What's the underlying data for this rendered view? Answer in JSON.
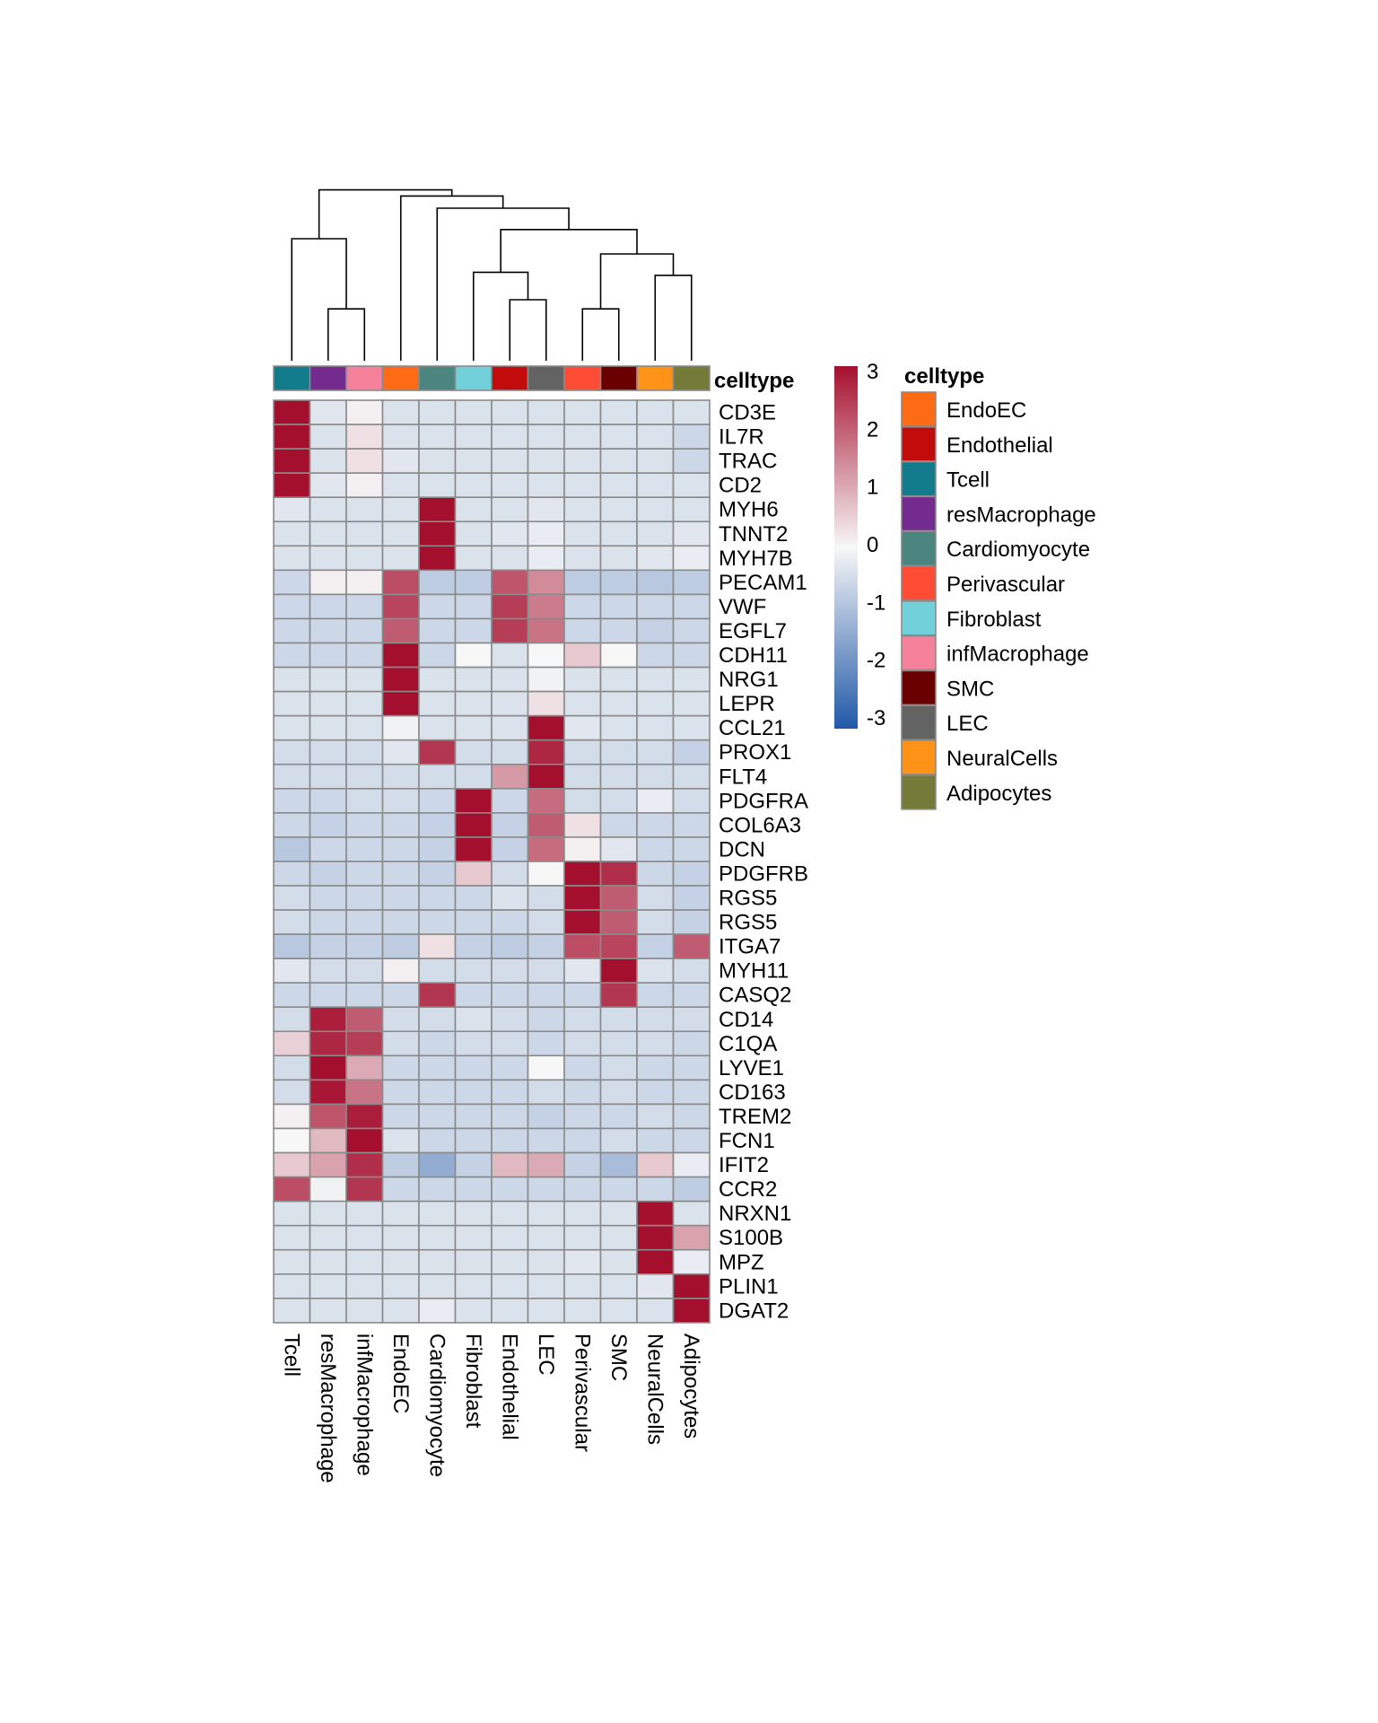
{
  "chart_data": {
    "type": "heatmap",
    "annotation_title": "celltype",
    "columns": [
      "Tcell",
      "resMacrophage",
      "infMacrophage",
      "EndoEC",
      "Cardiomyocyte",
      "Fibroblast",
      "Endothelial",
      "LEC",
      "Perivascular",
      "SMC",
      "NeuralCells",
      "Adipocytes"
    ],
    "rows": [
      "CD3E",
      "IL7R",
      "TRAC",
      "CD2",
      "MYH6",
      "TNNT2",
      "MYH7B",
      "PECAM1",
      "VWF",
      "EGFL7",
      "CDH11",
      "NRG1",
      "LEPR",
      "CCL21",
      "PROX1",
      "FLT4",
      "PDGFRA",
      "COL6A3",
      "DCN",
      "PDGFRB",
      "RGS5",
      "RGS5",
      "ITGA7",
      "MYH11",
      "CASQ2",
      "CD14",
      "C1QA",
      "LYVE1",
      "CD163",
      "TREM2",
      "FCN1",
      "IFIT2",
      "CCR2",
      "NRXN1",
      "S100B",
      "MPZ",
      "PLIN1",
      "DGAT2"
    ],
    "values": [
      [
        3.2,
        -0.3,
        0.1,
        -0.4,
        -0.4,
        -0.4,
        -0.4,
        -0.4,
        -0.4,
        -0.4,
        -0.4,
        -0.4
      ],
      [
        3.2,
        -0.4,
        0.3,
        -0.4,
        -0.4,
        -0.4,
        -0.4,
        -0.4,
        -0.4,
        -0.4,
        -0.4,
        -0.6
      ],
      [
        3.2,
        -0.4,
        0.3,
        -0.3,
        -0.4,
        -0.4,
        -0.4,
        -0.4,
        -0.4,
        -0.4,
        -0.4,
        -0.6
      ],
      [
        3.2,
        -0.3,
        0.1,
        -0.4,
        -0.4,
        -0.4,
        -0.4,
        -0.4,
        -0.4,
        -0.4,
        -0.4,
        -0.4
      ],
      [
        -0.3,
        -0.4,
        -0.4,
        -0.4,
        3.2,
        -0.4,
        -0.4,
        -0.3,
        -0.4,
        -0.4,
        -0.4,
        -0.4
      ],
      [
        -0.4,
        -0.4,
        -0.4,
        -0.4,
        3.2,
        -0.4,
        -0.3,
        -0.2,
        -0.4,
        -0.4,
        -0.4,
        -0.3
      ],
      [
        -0.4,
        -0.4,
        -0.4,
        -0.4,
        3.2,
        -0.4,
        -0.4,
        -0.2,
        -0.4,
        -0.4,
        -0.3,
        -0.2
      ],
      [
        -0.6,
        0.1,
        0.1,
        2.2,
        -0.8,
        -0.8,
        2.1,
        1.4,
        -0.8,
        -0.8,
        -0.9,
        -0.8
      ],
      [
        -0.6,
        -0.6,
        -0.6,
        2.3,
        -0.6,
        -0.6,
        2.4,
        1.6,
        -0.6,
        -0.6,
        -0.6,
        -0.6
      ],
      [
        -0.6,
        -0.6,
        -0.6,
        2.0,
        -0.6,
        -0.6,
        2.4,
        1.7,
        -0.6,
        -0.6,
        -0.7,
        -0.6
      ],
      [
        -0.6,
        -0.6,
        -0.6,
        3.2,
        -0.6,
        0.0,
        -0.4,
        0.0,
        0.6,
        0.0,
        -0.6,
        -0.6
      ],
      [
        -0.4,
        -0.4,
        -0.4,
        3.2,
        -0.4,
        -0.4,
        -0.4,
        -0.1,
        -0.4,
        -0.4,
        -0.4,
        -0.4
      ],
      [
        -0.4,
        -0.4,
        -0.4,
        3.2,
        -0.4,
        -0.4,
        -0.4,
        0.3,
        -0.4,
        -0.4,
        -0.4,
        -0.4
      ],
      [
        -0.4,
        -0.4,
        -0.4,
        -0.1,
        -0.4,
        -0.4,
        -0.4,
        3.2,
        -0.3,
        -0.4,
        -0.4,
        -0.4
      ],
      [
        -0.5,
        -0.5,
        -0.5,
        -0.3,
        2.5,
        -0.5,
        -0.5,
        2.7,
        -0.5,
        -0.5,
        -0.5,
        -0.7
      ],
      [
        -0.5,
        -0.5,
        -0.5,
        -0.5,
        -0.5,
        -0.5,
        1.2,
        3.0,
        -0.5,
        -0.5,
        -0.5,
        -0.5
      ],
      [
        -0.6,
        -0.6,
        -0.5,
        -0.5,
        -0.6,
        3.0,
        -0.6,
        1.8,
        -0.5,
        -0.5,
        -0.2,
        -0.5
      ],
      [
        -0.6,
        -0.7,
        -0.6,
        -0.6,
        -0.7,
        3.0,
        -0.7,
        2.0,
        0.3,
        -0.6,
        -0.6,
        -0.6
      ],
      [
        -0.9,
        -0.6,
        -0.6,
        -0.6,
        -0.7,
        3.0,
        -0.7,
        1.8,
        0.1,
        -0.3,
        -0.6,
        -0.6
      ],
      [
        -0.6,
        -0.7,
        -0.6,
        -0.6,
        -0.7,
        0.6,
        -0.5,
        0.0,
        3.0,
        2.6,
        -0.6,
        -0.7
      ],
      [
        -0.5,
        -0.6,
        -0.6,
        -0.6,
        -0.6,
        -0.6,
        -0.4,
        -0.5,
        3.0,
        2.0,
        -0.5,
        -0.7
      ],
      [
        -0.5,
        -0.6,
        -0.6,
        -0.6,
        -0.6,
        -0.6,
        -0.6,
        -0.5,
        3.0,
        2.0,
        -0.5,
        -0.7
      ],
      [
        -0.9,
        -0.7,
        -0.7,
        -0.8,
        0.3,
        -0.7,
        -0.8,
        -0.7,
        2.2,
        2.3,
        -0.7,
        2.0
      ],
      [
        -0.3,
        -0.5,
        -0.5,
        0.1,
        -0.5,
        -0.5,
        -0.5,
        -0.5,
        -0.3,
        3.2,
        -0.4,
        -0.5
      ],
      [
        -0.6,
        -0.6,
        -0.6,
        -0.6,
        2.5,
        -0.6,
        -0.6,
        -0.6,
        -0.6,
        2.5,
        -0.6,
        -0.6
      ],
      [
        -0.5,
        2.8,
        2.0,
        -0.5,
        -0.5,
        -0.4,
        -0.5,
        -0.6,
        -0.5,
        -0.5,
        -0.5,
        -0.5
      ],
      [
        0.5,
        2.7,
        2.4,
        -0.5,
        -0.6,
        -0.5,
        -0.5,
        -0.6,
        -0.5,
        -0.5,
        -0.5,
        -0.6
      ],
      [
        -0.5,
        3.0,
        1.0,
        -0.6,
        -0.6,
        -0.6,
        -0.6,
        0.0,
        -0.6,
        -0.5,
        -0.6,
        -0.6
      ],
      [
        -0.5,
        2.9,
        1.7,
        -0.6,
        -0.6,
        -0.6,
        -0.6,
        -0.5,
        -0.6,
        -0.5,
        -0.6,
        -0.6
      ],
      [
        0.1,
        2.1,
        2.8,
        -0.6,
        -0.6,
        -0.6,
        -0.6,
        -0.7,
        -0.6,
        -0.6,
        -0.5,
        -0.6
      ],
      [
        0.0,
        0.8,
        3.2,
        -0.4,
        -0.6,
        -0.6,
        -0.6,
        -0.6,
        -0.6,
        -0.5,
        -0.6,
        -0.6
      ],
      [
        0.6,
        1.1,
        2.6,
        -0.8,
        -1.4,
        -0.7,
        0.8,
        1.0,
        -0.7,
        -1.1,
        0.6,
        -0.2
      ],
      [
        2.2,
        -0.1,
        2.5,
        -0.6,
        -0.6,
        -0.6,
        -0.6,
        -0.6,
        -0.6,
        -0.6,
        -0.6,
        -0.8
      ],
      [
        -0.4,
        -0.4,
        -0.4,
        -0.4,
        -0.4,
        -0.4,
        -0.4,
        -0.4,
        -0.4,
        -0.4,
        3.2,
        -0.4
      ],
      [
        -0.4,
        -0.4,
        -0.4,
        -0.4,
        -0.4,
        -0.4,
        -0.4,
        -0.4,
        -0.4,
        -0.4,
        3.0,
        1.1
      ],
      [
        -0.4,
        -0.4,
        -0.4,
        -0.4,
        -0.4,
        -0.4,
        -0.4,
        -0.4,
        -0.3,
        -0.4,
        3.0,
        -0.2
      ],
      [
        -0.4,
        -0.4,
        -0.4,
        -0.4,
        -0.4,
        -0.4,
        -0.4,
        -0.4,
        -0.4,
        -0.4,
        -0.3,
        3.2
      ],
      [
        -0.4,
        -0.4,
        -0.4,
        -0.4,
        -0.2,
        -0.4,
        -0.4,
        -0.4,
        -0.4,
        -0.4,
        -0.4,
        3.2
      ]
    ],
    "column_colors": {
      "Tcell": "#137C8C",
      "resMacrophage": "#742B8F",
      "infMacrophage": "#F5829A",
      "EndoEC": "#FF6A14",
      "Cardiomyocyte": "#4A8580",
      "Fibroblast": "#72D0DB",
      "Endothelial": "#C20B0B",
      "LEC": "#636363",
      "Perivascular": "#FF4C35",
      "SMC": "#6B0000",
      "NeuralCells": "#FF9318",
      "Adipocytes": "#757A39"
    },
    "legend_order": [
      "EndoEC",
      "Endothelial",
      "Tcell",
      "resMacrophage",
      "Cardiomyocyte",
      "Perivascular",
      "Fibroblast",
      "infMacrophage",
      "SMC",
      "LEC",
      "NeuralCells",
      "Adipocytes"
    ],
    "colorbar": {
      "range": [
        -3,
        3
      ],
      "ticks": [
        "3",
        "2",
        "1",
        "0",
        "-1",
        "-2",
        "-3"
      ],
      "low_color": "#2159A8",
      "mid_color": "#F7F7F7",
      "high_color": "#A50F2E"
    },
    "dendrogram": [
      {
        "a": 1,
        "b": 2,
        "h": 0.17
      },
      {
        "a": 0,
        "b": 12,
        "h": 0.4
      },
      {
        "a": 6,
        "b": 7,
        "h": 0.2
      },
      {
        "a": 5,
        "b": 14,
        "h": 0.29
      },
      {
        "a": 8,
        "b": 9,
        "h": 0.17
      },
      {
        "a": 10,
        "b": 11,
        "h": 0.28
      },
      {
        "a": 16,
        "b": 17,
        "h": 0.35
      },
      {
        "a": 15,
        "b": 18,
        "h": 0.43
      },
      {
        "a": 4,
        "b": 19,
        "h": 0.5
      },
      {
        "a": 3,
        "b": 20,
        "h": 0.54
      },
      {
        "a": 13,
        "b": 21,
        "h": 0.56
      }
    ]
  }
}
